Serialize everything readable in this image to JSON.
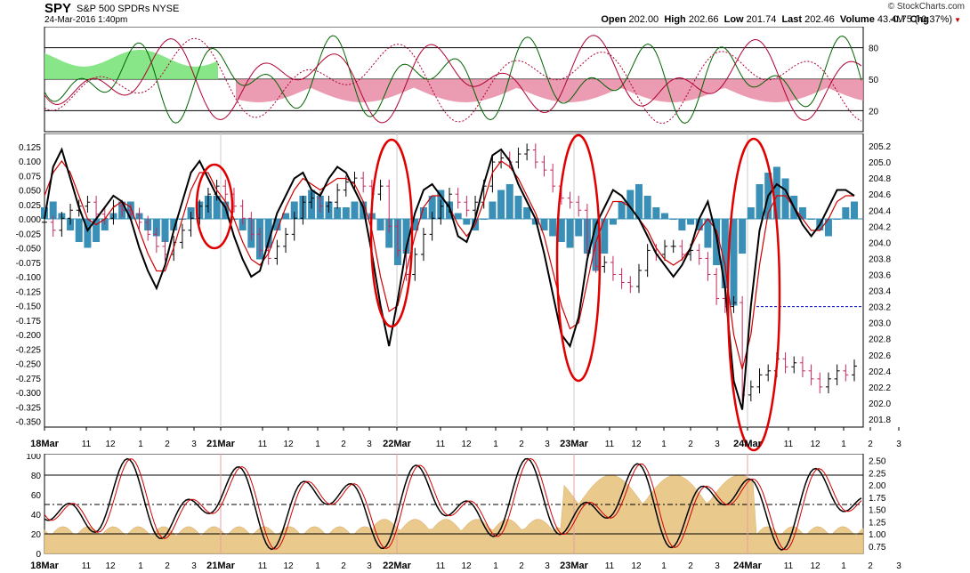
{
  "header": {
    "symbol": "SPY",
    "name": "S&P 500 SPDRs",
    "exchange": "NYSE",
    "datetime": "24-Mar-2016 1:40pm",
    "brand": "© StockCharts.com",
    "open_label": "Open",
    "open": "202.00",
    "high_label": "High",
    "high": "202.66",
    "low_label": "Low",
    "low": "201.74",
    "last_label": "Last",
    "last": "202.46",
    "volume_label": "Volume",
    "volume": "43.4M",
    "chg_label": "Chg",
    "chg": "-0.75 (-0.37%)"
  },
  "colors": {
    "up_bar": "#000000",
    "down_bar": "#c8285a",
    "histogram": "#3a8fb7",
    "sma": "#d00000",
    "stoch_fill_green": "#7be37b",
    "stoch_fill_pink": "#e88aa4",
    "volume_area": "#e9c98c",
    "ellipse": "#e00000",
    "dashed_level": "#0000cc"
  },
  "chart_data": [
    {
      "type": "line",
      "panel": "top indicator",
      "y_ticks": [
        "80",
        "50",
        "20"
      ],
      "reference_lines": [
        80,
        50,
        20
      ],
      "ylim": [
        0,
        100
      ]
    },
    {
      "type": "bar",
      "panel": "main price (OHLC) with histogram oscillator",
      "x_tick_labels": [
        "18Mar",
        "11",
        "12",
        "1",
        "2",
        "3",
        "21Mar",
        "11",
        "12",
        "1",
        "2",
        "3",
        "22Mar",
        "11",
        "12",
        "1",
        "2",
        "3",
        "23Mar",
        "11",
        "12",
        "1",
        "2",
        "3",
        "24Mar",
        "11",
        "12",
        "1",
        "2",
        "3"
      ],
      "left_axis_ticks": [
        "0.125",
        "0.100",
        "0.075",
        "0.050",
        "0.025",
        "0.000",
        "-0.025",
        "-0.050",
        "-0.075",
        "-0.100",
        "-0.125",
        "-0.150",
        "-0.175",
        "-0.200",
        "-0.225",
        "-0.250",
        "-0.275",
        "-0.300",
        "-0.325",
        "-0.350"
      ],
      "left_ylim": [
        -0.36,
        0.14
      ],
      "right_axis_ticks": [
        "205.2",
        "205.0",
        "204.8",
        "204.6",
        "204.4",
        "204.2",
        "204.0",
        "203.8",
        "203.6",
        "203.4",
        "203.2",
        "203.0",
        "202.8",
        "202.6",
        "202.4",
        "202.2",
        "202.0",
        "201.8"
      ],
      "right_ylim": [
        201.7,
        205.3
      ],
      "price_close": [
        204.25,
        204.15,
        204.3,
        204.4,
        204.45,
        204.5,
        204.35,
        204.3,
        204.45,
        204.4,
        204.35,
        204.25,
        204.1,
        203.95,
        203.85,
        204.0,
        204.15,
        204.3,
        204.45,
        204.6,
        204.7,
        204.6,
        204.45,
        204.3,
        204.1,
        203.9,
        203.8,
        203.95,
        204.1,
        204.3,
        204.5,
        204.55,
        204.45,
        204.5,
        204.65,
        204.75,
        204.8,
        204.7,
        204.6,
        204.7,
        204.2,
        203.9,
        203.6,
        203.85,
        204.1,
        204.3,
        204.45,
        204.6,
        204.5,
        204.4,
        204.5,
        204.7,
        205.0,
        205.05,
        205.0,
        205.1,
        205.15,
        205.0,
        204.9,
        204.7,
        204.55,
        204.5,
        204.4,
        203.9,
        203.7,
        203.75,
        203.6,
        203.5,
        203.45,
        203.65,
        203.9,
        203.85,
        203.95,
        203.95,
        203.85,
        203.9,
        203.8,
        203.6,
        203.3,
        203.2,
        203.25,
        202.1,
        202.2,
        202.35,
        202.4,
        202.55,
        202.45,
        202.5,
        202.4,
        202.3,
        202.2,
        202.3,
        202.4,
        202.35,
        202.46
      ],
      "histogram": [
        0.02,
        0.03,
        0.01,
        -0.02,
        -0.04,
        -0.05,
        -0.04,
        -0.02,
        0.01,
        0.03,
        0.03,
        0.01,
        -0.02,
        -0.03,
        -0.04,
        -0.02,
        0.0,
        0.02,
        0.03,
        0.04,
        0.04,
        0.03,
        0.0,
        -0.02,
        -0.05,
        -0.07,
        -0.05,
        -0.02,
        0.01,
        0.03,
        0.04,
        0.05,
        0.04,
        0.03,
        0.02,
        0.02,
        0.03,
        0.03,
        0.01,
        -0.02,
        -0.05,
        -0.08,
        -0.06,
        -0.02,
        0.02,
        0.04,
        0.05,
        0.03,
        0.01,
        -0.01,
        -0.02,
        0.0,
        0.03,
        0.05,
        0.06,
        0.04,
        0.02,
        -0.01,
        -0.02,
        -0.03,
        -0.04,
        -0.05,
        -0.03,
        -0.06,
        -0.09,
        -0.06,
        -0.01,
        0.03,
        0.05,
        0.06,
        0.04,
        0.02,
        0.01,
        0.0,
        -0.02,
        -0.01,
        -0.02,
        -0.05,
        -0.08,
        -0.12,
        -0.15,
        -0.06,
        0.02,
        0.06,
        0.08,
        0.09,
        0.07,
        0.04,
        0.02,
        0.0,
        -0.02,
        -0.03,
        0.0,
        0.02,
        0.03
      ],
      "oscillator_line": [
        0.0,
        0.09,
        0.12,
        0.07,
        0.02,
        -0.02,
        0.0,
        0.02,
        0.04,
        0.03,
        0.0,
        -0.05,
        -0.09,
        -0.12,
        -0.08,
        -0.02,
        0.03,
        0.08,
        0.1,
        0.07,
        0.04,
        0.02,
        -0.03,
        -0.07,
        -0.1,
        -0.09,
        -0.04,
        0.01,
        0.04,
        0.07,
        0.08,
        0.05,
        0.04,
        0.07,
        0.09,
        0.08,
        0.05,
        0.02,
        -0.06,
        -0.15,
        -0.22,
        -0.14,
        -0.05,
        0.01,
        0.05,
        0.06,
        0.04,
        0.02,
        -0.03,
        -0.04,
        0.0,
        0.06,
        0.11,
        0.12,
        0.1,
        0.06,
        0.03,
        0.0,
        -0.06,
        -0.13,
        -0.2,
        -0.22,
        -0.17,
        -0.07,
        -0.01,
        0.02,
        0.05,
        0.04,
        0.02,
        0.0,
        -0.03,
        -0.06,
        -0.08,
        -0.1,
        -0.08,
        -0.05,
        0.0,
        0.03,
        -0.03,
        -0.12,
        -0.28,
        -0.33,
        -0.15,
        -0.02,
        0.04,
        0.06,
        0.05,
        0.02,
        -0.01,
        -0.03,
        -0.01,
        0.02,
        0.05,
        0.05,
        0.04
      ],
      "sma_line": [
        0.04,
        0.08,
        0.1,
        0.08,
        0.04,
        0.0,
        -0.01,
        0.0,
        0.02,
        0.03,
        0.02,
        -0.02,
        -0.06,
        -0.09,
        -0.09,
        -0.05,
        0.0,
        0.05,
        0.08,
        0.08,
        0.05,
        0.03,
        0.0,
        -0.04,
        -0.07,
        -0.08,
        -0.06,
        -0.02,
        0.02,
        0.05,
        0.07,
        0.06,
        0.05,
        0.06,
        0.07,
        0.07,
        0.06,
        0.03,
        -0.02,
        -0.1,
        -0.16,
        -0.15,
        -0.09,
        -0.03,
        0.02,
        0.04,
        0.04,
        0.02,
        -0.01,
        -0.03,
        -0.01,
        0.03,
        0.08,
        0.1,
        0.09,
        0.07,
        0.04,
        0.01,
        -0.03,
        -0.09,
        -0.15,
        -0.19,
        -0.18,
        -0.11,
        -0.04,
        0.0,
        0.03,
        0.03,
        0.02,
        0.0,
        -0.02,
        -0.05,
        -0.07,
        -0.08,
        -0.07,
        -0.05,
        -0.02,
        0.0,
        -0.02,
        -0.08,
        -0.2,
        -0.26,
        -0.2,
        -0.08,
        0.01,
        0.04,
        0.04,
        0.02,
        0.0,
        -0.02,
        -0.02,
        0.0,
        0.03,
        0.04,
        0.04
      ],
      "dashed_level": 203.2
    },
    {
      "type": "area",
      "panel": "bottom oscillator with volume area",
      "x_tick_labels": [
        "18Mar",
        "11",
        "12",
        "1",
        "2",
        "3",
        "21Mar",
        "11",
        "12",
        "1",
        "2",
        "3",
        "22Mar",
        "11",
        "12",
        "1",
        "2",
        "3",
        "23Mar",
        "11",
        "12",
        "1",
        "2",
        "3",
        "24Mar",
        "11",
        "12",
        "1",
        "2",
        "3"
      ],
      "left_axis_ticks": [
        "100",
        "80",
        "60",
        "40",
        "20",
        "0"
      ],
      "left_ylim": [
        0,
        100
      ],
      "right_axis_ticks": [
        "2.50",
        "2.25",
        "2.00",
        "1.75",
        "1.50",
        "1.25",
        "1.00",
        "0.75"
      ],
      "right_ylim": [
        0.6,
        2.6
      ],
      "reference_lines": [
        80,
        50,
        20
      ]
    }
  ]
}
